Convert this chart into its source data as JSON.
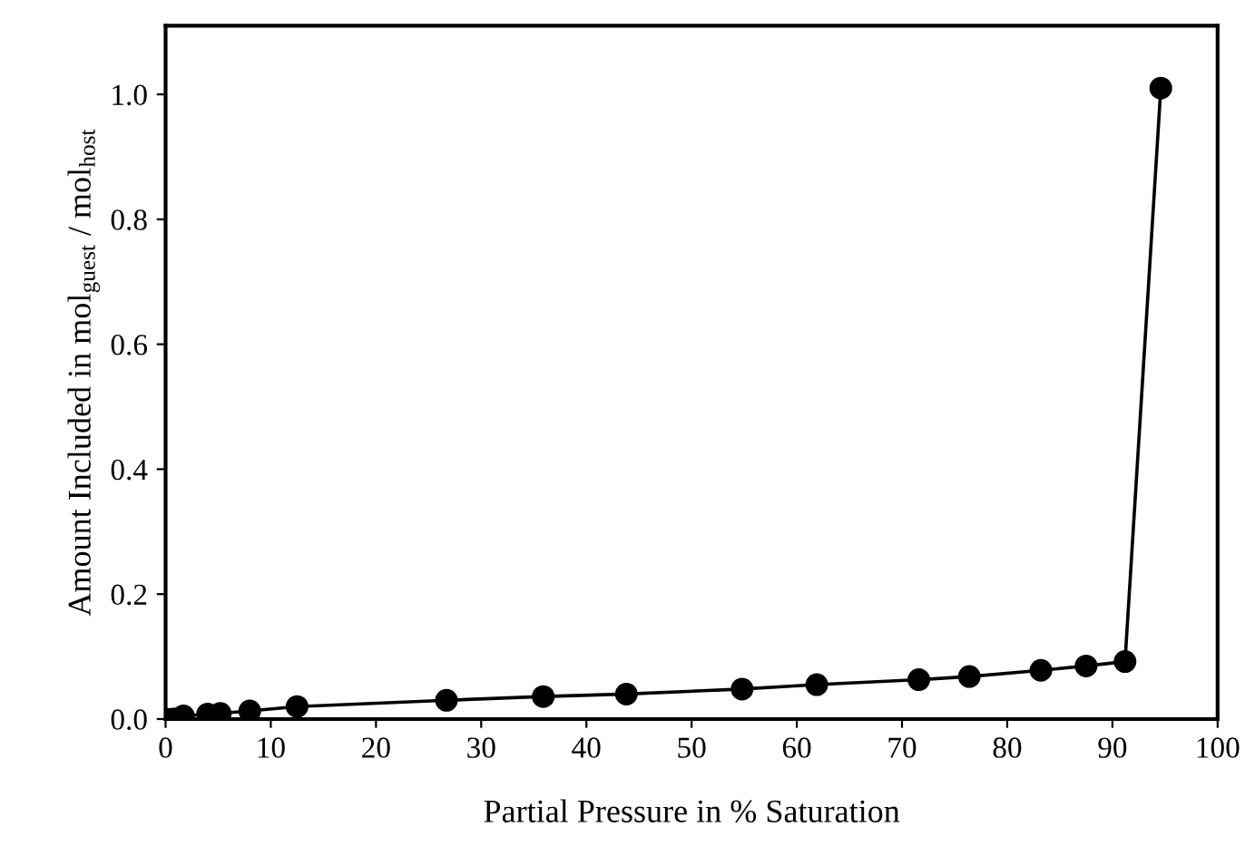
{
  "chart_data": {
    "type": "line",
    "xlabel": "Partial Pressure in % Saturation",
    "ylabel": "Amount Included in mol$_{guest}$ / mol$_{host}$",
    "x": [
      0,
      0.7,
      1.0,
      1.7,
      4.0,
      5.2,
      8.0,
      12.5,
      26.7,
      35.9,
      43.8,
      54.8,
      61.9,
      71.6,
      76.4,
      83.2,
      87.5,
      91.2,
      94.6
    ],
    "series": [
      {
        "color": "#000000",
        "values": [
          0,
          0,
          0,
          0.005,
          0.008,
          0.009,
          0.013,
          0.02,
          0.03,
          0.036,
          0.04,
          0.048,
          0.055,
          0.063,
          0.068,
          0.078,
          0.085,
          0.092,
          1.01
        ]
      }
    ],
    "xlim": [
      0,
      100
    ],
    "xticks": [
      0,
      10,
      20,
      30,
      40,
      50,
      60,
      70,
      80,
      90,
      100
    ],
    "ylim": [
      0,
      1.11
    ],
    "yticks": [
      {
        "value": 0,
        "label": "0.0"
      },
      0.2,
      0.4,
      0.6,
      0.8,
      {
        "value": 1,
        "label": "1.0"
      }
    ],
    "marker": "circle",
    "line_style": "solid",
    "grid": false,
    "legend": false
  }
}
